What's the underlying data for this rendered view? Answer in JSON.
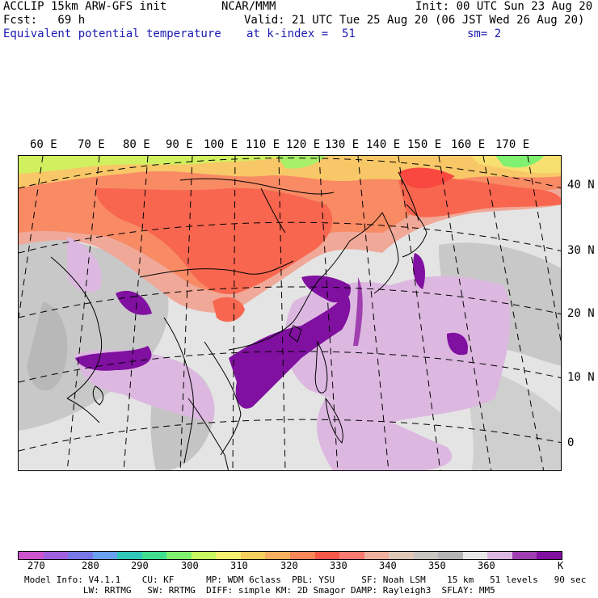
{
  "header": {
    "line1_left": "ACCLIP 15km ARW-GFS init",
    "line1_mid": "NCAR/MMM",
    "line1_right": "Init: 00 UTC Sun 23 Aug 20",
    "line2_left": "Fcst:   69 h",
    "line2_right": "Valid: 21 UTC Tue 25 Aug 20 (06 JST Wed 26 Aug 20)",
    "line3_left": "Equivalent potential temperature",
    "line3_mid": "at k-index =  51",
    "line3_right": "sm= 2"
  },
  "map": {
    "lon_labels": [
      "60 E",
      "70 E",
      "80 E",
      "90 E",
      "100 E",
      "110 E",
      "120 E",
      "130 E",
      "140 E",
      "150 E",
      "160 E",
      "170 E"
    ],
    "lat_labels": [
      "40 N",
      "30 N",
      "20 N",
      "10 N",
      "0"
    ]
  },
  "colorbar": {
    "colors": [
      "#cc55cc",
      "#a060e0",
      "#7878e8",
      "#6aa0f0",
      "#30c8b8",
      "#40e090",
      "#80f070",
      "#c8f860",
      "#f8f070",
      "#f8d060",
      "#f8b060",
      "#f88858",
      "#f85848",
      "#f87a70",
      "#f0b0a0",
      "#e0c8b8",
      "#c8c4c0",
      "#b4b4b4",
      "#e8e8e8",
      "#dcb8e0",
      "#a040b0",
      "#8010a0"
    ],
    "labels": [
      "270",
      "280",
      "290",
      "300",
      "310",
      "320",
      "330",
      "340",
      "350",
      "360",
      "K"
    ]
  },
  "footer": {
    "line1": "Model Info: V4.1.1    CU: KF      MP: WDM 6class  PBL: YSU     SF: Noah LSM    15 km   51 levels   90 sec",
    "line2": "           LW: RRTMG   SW: RRTMG  DIFF: simple KM: 2D Smagor DAMP: Rayleigh3  SFLAY: MM5"
  }
}
